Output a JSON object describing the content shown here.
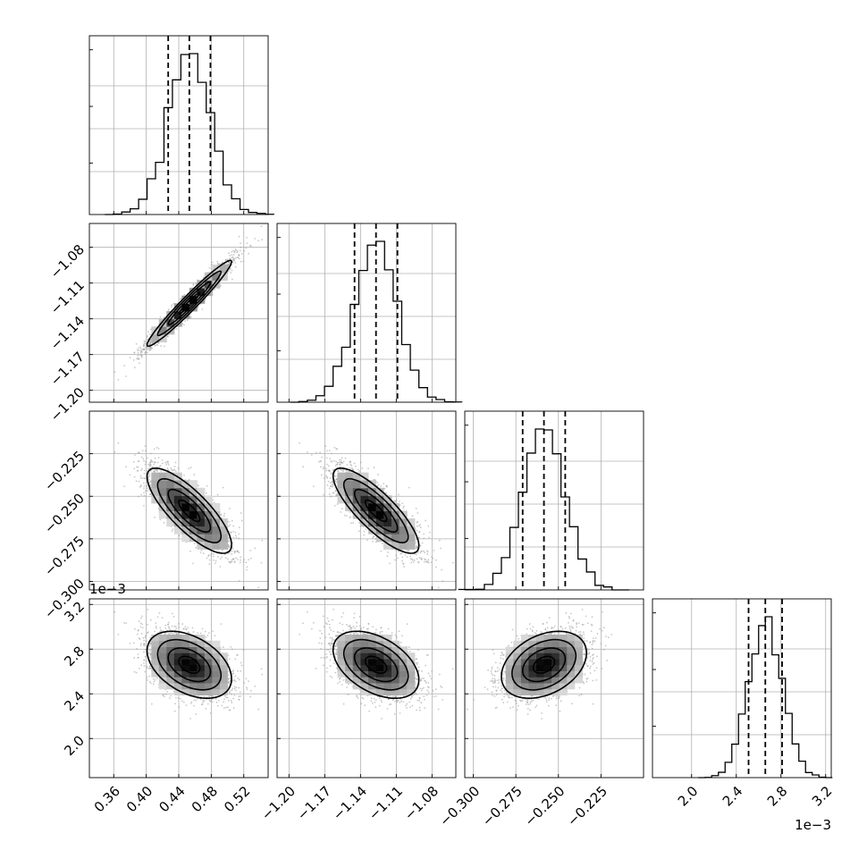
{
  "chart_data": {
    "type": "corner",
    "title": "",
    "parameters": [
      {
        "range": [
          0.33,
          0.55
        ],
        "ticks": [
          0.36,
          0.4,
          0.44,
          0.48,
          0.52
        ],
        "tick_labels": [
          "0.36",
          "0.40",
          "0.44",
          "0.48",
          "0.52"
        ],
        "mean": 0.453,
        "sd": 0.026,
        "quantiles": [
          0.427,
          0.453,
          0.479
        ],
        "offset_label": ""
      },
      {
        "range": [
          -1.21,
          -1.06
        ],
        "ticks": [
          -1.2,
          -1.17,
          -1.14,
          -1.11,
          -1.08
        ],
        "tick_labels": [
          "−1.20",
          "−1.17",
          "−1.14",
          "−1.11",
          "−1.08"
        ],
        "mean": -1.127,
        "sd": 0.018,
        "quantiles": [
          -1.145,
          -1.127,
          -1.109
        ],
        "offset_label": ""
      },
      {
        "range": [
          -0.305,
          -0.2
        ],
        "ticks": [
          -0.3,
          -0.275,
          -0.25,
          -0.225
        ],
        "tick_labels": [
          "−0.300",
          "−0.275",
          "−0.250",
          "−0.225"
        ],
        "mean": -0.2585,
        "sd": 0.0125,
        "quantiles": [
          -0.271,
          -0.2585,
          -0.246
        ],
        "offset_label": ""
      },
      {
        "range": [
          1.65,
          3.25
        ],
        "ticks": [
          2.0,
          2.4,
          2.8,
          3.2
        ],
        "tick_labels": [
          "2.0",
          "2.4",
          "2.8",
          "3.2"
        ],
        "mean": 2.66,
        "sd": 0.15,
        "quantiles": [
          2.51,
          2.66,
          2.81
        ],
        "offset_label": "1e−3"
      }
    ],
    "correlations": [
      {
        "pair": [
          0,
          1
        ],
        "rho": 0.97
      },
      {
        "pair": [
          0,
          2
        ],
        "rho": -0.8
      },
      {
        "pair": [
          1,
          2
        ],
        "rho": -0.82
      },
      {
        "pair": [
          0,
          3
        ],
        "rho": -0.42
      },
      {
        "pair": [
          1,
          3
        ],
        "rho": -0.45
      },
      {
        "pair": [
          2,
          3
        ],
        "rho": 0.35
      }
    ],
    "histogram_bins": 20,
    "contour_levels": 3,
    "quantile_lines": "dashed",
    "grid": true
  }
}
